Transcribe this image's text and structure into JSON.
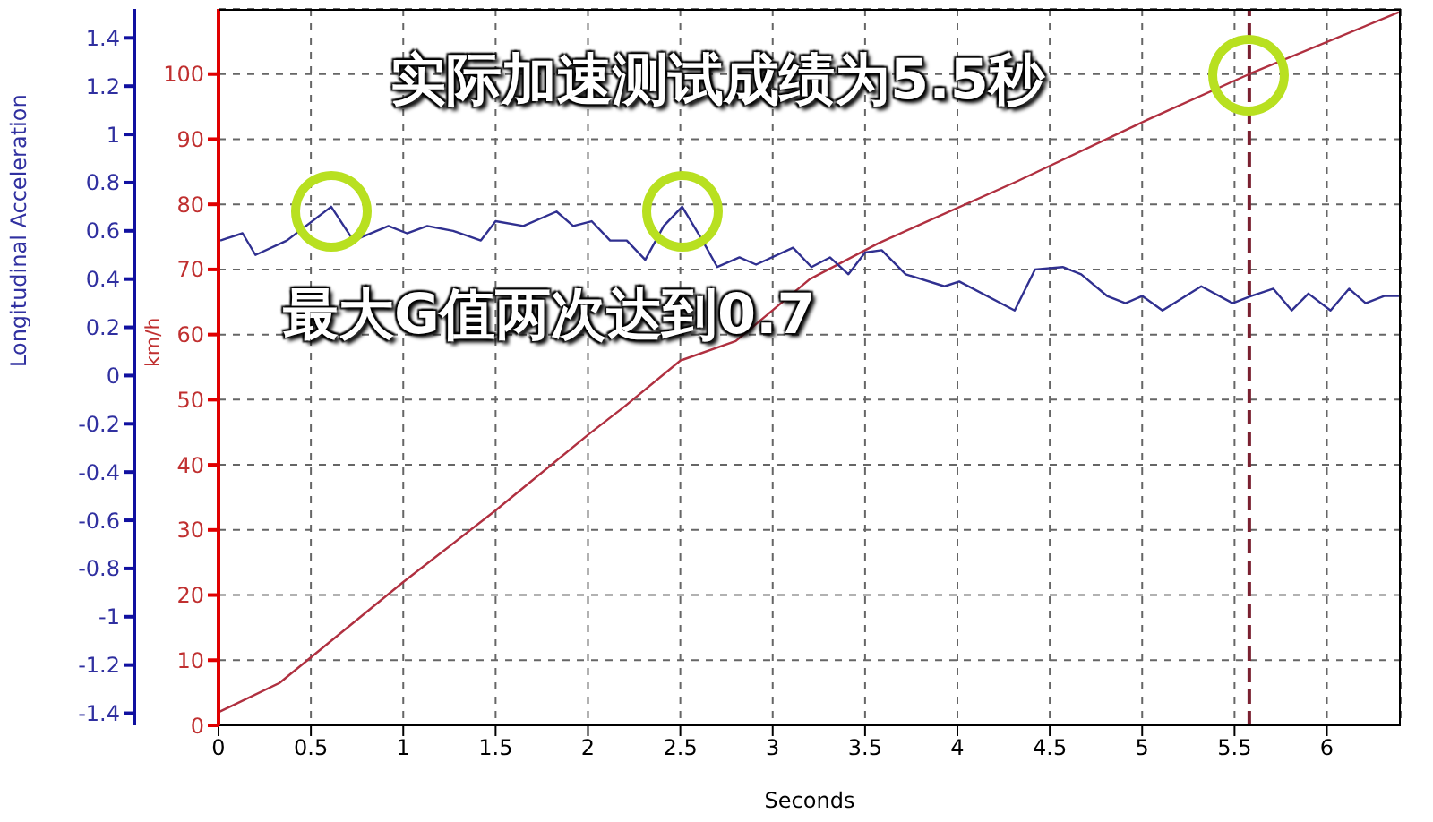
{
  "chart_data": {
    "type": "line",
    "xlabel": "Seconds",
    "ylabel": "km/h",
    "y2label": "Longitudinal Acceleration",
    "annotations": [
      "实际加速测试成绩为5.5秒",
      "最大G值两次达到0.7"
    ],
    "series": [
      {
        "axis": "y",
        "color": "#b03040",
        "x": [
          0,
          0.33,
          1,
          1.5,
          2,
          2.2,
          2.5,
          2.8,
          3.2,
          3.57,
          4.32,
          5.03,
          5.58,
          6.39
        ],
        "values": [
          2,
          6.5,
          22,
          33,
          44.6,
          49,
          56,
          59,
          68.5,
          74,
          83.5,
          93,
          100,
          109.5
        ]
      },
      {
        "axis": "y2",
        "color": "#303090",
        "x": [
          0.01,
          0.13,
          0.2,
          0.37,
          0.61,
          0.73,
          0.92,
          1.02,
          1.13,
          1.27,
          1.42,
          1.5,
          1.65,
          1.83,
          1.92,
          2.02,
          2.12,
          2.21,
          2.31,
          2.41,
          2.51,
          2.62,
          2.7,
          2.82,
          2.91,
          3.11,
          3.21,
          3.31,
          3.41,
          3.5,
          3.59,
          3.72,
          3.93,
          4.01,
          4.31,
          4.42,
          4.57,
          4.67,
          4.81,
          4.91,
          5.0,
          5.11,
          5.32,
          5.49,
          5.59,
          5.71,
          5.81,
          5.9,
          6.02,
          6.12,
          6.21,
          6.31,
          6.39
        ],
        "values": [
          0.56,
          0.59,
          0.5,
          0.56,
          0.7,
          0.56,
          0.62,
          0.59,
          0.62,
          0.6,
          0.56,
          0.64,
          0.62,
          0.68,
          0.62,
          0.64,
          0.56,
          0.56,
          0.48,
          0.62,
          0.7,
          0.56,
          0.45,
          0.49,
          0.46,
          0.53,
          0.45,
          0.49,
          0.42,
          0.51,
          0.52,
          0.42,
          0.37,
          0.39,
          0.27,
          0.44,
          0.45,
          0.42,
          0.33,
          0.3,
          0.33,
          0.27,
          0.37,
          0.3,
          0.33,
          0.36,
          0.27,
          0.34,
          0.27,
          0.36,
          0.3,
          0.33,
          0.33
        ]
      }
    ],
    "xlim": [
      0,
      6.4
    ],
    "xticks": [
      0,
      0.5,
      1,
      1.5,
      2,
      2.5,
      3,
      3.5,
      4,
      4.5,
      5,
      5.5,
      6
    ],
    "ylim": [
      0,
      110
    ],
    "yticks": [
      0,
      10,
      20,
      30,
      40,
      50,
      60,
      70,
      80,
      90,
      100
    ],
    "y2lim": [
      -1.45,
      1.52
    ],
    "y2ticks": [
      -1.4,
      -1.2,
      -1,
      -0.8,
      -0.6,
      -0.4,
      -0.2,
      0,
      0.2,
      0.4,
      0.6,
      0.8,
      1,
      1.2,
      1.4
    ],
    "ref_lines": [
      {
        "axis": "x",
        "value": 5.58,
        "color": "#7a2030",
        "line_style": "dashed"
      }
    ],
    "grid": true,
    "marker": "none",
    "line_style": "solid"
  }
}
